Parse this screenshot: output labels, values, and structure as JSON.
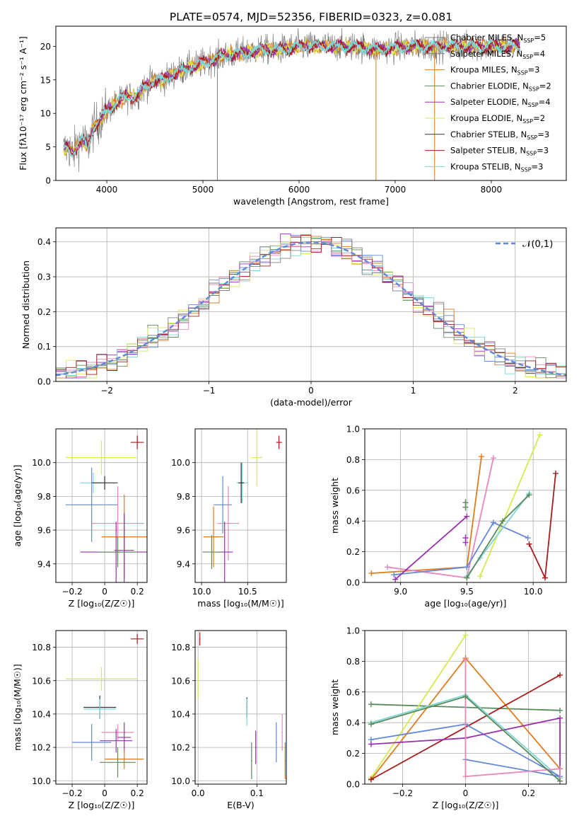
{
  "figure_title": "PLATE=0574, MJD=52356, FIBERID=0323, z=0.081",
  "colors": {
    "grey": "#808080",
    "red": "#a61c1c",
    "cyan": "#7fd6d6",
    "blue": "#6488d8",
    "orange": "#e07b1e",
    "green": "#5a8a5a",
    "purple": "#9a2fae",
    "yellow": "#d6ea50",
    "pink": "#e887b8",
    "dashed": "#6488d8"
  },
  "chart_data": [
    {
      "id": "spectrum",
      "type": "line",
      "xlabel": "wavelength [Angstrom, rest frame]",
      "ylabel": "Flux [fλ10⁻¹⁷ erg cm⁻² s⁻¹ A⁻¹]",
      "xlim": [
        3470,
        8780
      ],
      "ylim": [
        0,
        23
      ],
      "xticks": [
        4000,
        5000,
        6000,
        7000,
        8000
      ],
      "yticks": [
        0,
        5,
        10,
        15,
        20
      ],
      "grid": false,
      "legend_position": "top-right",
      "legend": [
        {
          "label": "Chabrier MILES, N_SSP=5",
          "color": "#808080"
        },
        {
          "label": "Salpeter MILES, N_SSP=4",
          "color": "#808080"
        },
        {
          "label": "Kroupa MILES, N_SSP=3",
          "color": "#e07b1e"
        },
        {
          "label": "Chabrier ELODIE, N_SSP=2",
          "color": "#5a8a5a"
        },
        {
          "label": "Salpeter ELODIE, N_SSP=4",
          "color": "#9a2fae"
        },
        {
          "label": "Kroupa ELODIE, N_SSP=2",
          "color": "#d6ea50"
        },
        {
          "label": "Chabrier STELIB, N_SSP=3",
          "color": "#333333"
        },
        {
          "label": "Salpeter STELIB, N_SSP=3",
          "color": "#a61c1c"
        },
        {
          "label": "Kroupa STELIB, N_SSP=3",
          "color": "#7fd6d6"
        }
      ],
      "continuum": {
        "x": [
          3550,
          3600,
          3650,
          3700,
          3750,
          3800,
          3850,
          3900,
          3950,
          4000,
          4100,
          4200,
          4300,
          4400,
          4500,
          4600,
          4700,
          4800,
          4900,
          5000,
          5200,
          5400,
          5600,
          5800,
          6000,
          6200,
          6400,
          6600,
          6800,
          7000,
          7200,
          7400,
          7600,
          7800,
          8000,
          8200,
          8300
        ],
        "y": [
          4.5,
          5.0,
          4.0,
          5.5,
          6.0,
          5.0,
          7.5,
          8.5,
          9.5,
          10.5,
          11.5,
          12.5,
          12.5,
          14.0,
          15.0,
          15.0,
          16.0,
          16.5,
          17.0,
          17.5,
          18.5,
          19.0,
          19.5,
          19.5,
          20.0,
          20.0,
          20.0,
          20.0,
          19.5,
          19.8,
          20.0,
          20.0,
          20.0,
          20.0,
          20.0,
          20.0,
          20.0
        ]
      },
      "dips": [
        {
          "x": 5150,
          "to": 0
        },
        {
          "x": 6800,
          "to": 0
        },
        {
          "x": 7410,
          "to": 0
        }
      ],
      "dip_colors": [
        "#808080",
        "#e07b1e",
        "#e07b1e"
      ]
    },
    {
      "id": "residuals",
      "type": "bar",
      "xlabel": "(data-model)/error",
      "ylabel": "Normed distribution",
      "xlim": [
        -2.5,
        2.5
      ],
      "ylim": [
        0,
        0.44
      ],
      "xticks": [
        -2,
        -1,
        0,
        1,
        2
      ],
      "yticks": [
        0.0,
        0.1,
        0.2,
        0.3,
        0.4
      ],
      "grid": true,
      "bin_width": 0.1,
      "x_start": -2.5,
      "gaussian_label": "𝒩(0,1)",
      "legend_position": "top-right",
      "n_histograms": 9,
      "series_colors": [
        "#6488d8",
        "#e07b1e",
        "#5a8a5a",
        "#9a2fae",
        "#d6ea50",
        "#e887b8",
        "#7fd6d6",
        "#a61c1c",
        "#808080"
      ]
    },
    {
      "id": "age_vs_Z",
      "type": "scatter",
      "xlabel": "Z [log₁₀(Z/Z☉)]",
      "ylabel": "age  [log₁₀(age/yr)]",
      "xlim": [
        -0.3,
        0.26
      ],
      "ylim": [
        9.29,
        10.2
      ],
      "xticks": [
        -0.2,
        0.0,
        0.2
      ],
      "yticks": [
        9.4,
        9.6,
        9.8,
        10.0
      ],
      "ytick_labels": [
        "9.4",
        "9.6",
        "9.8",
        "10.0"
      ],
      "grid": true,
      "points": [
        {
          "x": 0.2,
          "y": 10.12,
          "xe": 0.04,
          "ye": 0.04,
          "c": "#a61c1c"
        },
        {
          "x": -0.02,
          "y": 10.03,
          "xe": 0.22,
          "ye": 0.1,
          "c": "#d6ea50"
        },
        {
          "x": -0.07,
          "y": 9.88,
          "xe": 0.08,
          "ye": 0.06,
          "c": "#7fd6d6"
        },
        {
          "x": 0.0,
          "y": 9.88,
          "xe": 0.08,
          "ye": 0.04,
          "c": "#333333"
        },
        {
          "x": -0.08,
          "y": 9.75,
          "xe": 0.16,
          "ye": 0.22,
          "c": "#6488d8"
        },
        {
          "x": 0.08,
          "y": 9.64,
          "xe": 0.16,
          "ye": 0.22,
          "c": "#e887b8"
        },
        {
          "x": 0.12,
          "y": 9.56,
          "xe": 0.14,
          "ye": 0.25,
          "c": "#e07b1e"
        },
        {
          "x": 0.07,
          "y": 9.47,
          "xe": 0.22,
          "ye": 0.18,
          "c": "#9a2fae"
        },
        {
          "x": 0.12,
          "y": 9.48,
          "xe": 0.06,
          "ye": 0.22,
          "c": "#9a2fae"
        },
        {
          "x": 0.08,
          "y": 9.47,
          "xe": 0.12,
          "ye": 0.09,
          "c": "#5a8a5a"
        }
      ]
    },
    {
      "id": "age_vs_mass",
      "type": "scatter",
      "xlabel": "mass [log₁₀(M/M☉)]",
      "ylabel": "",
      "xlim": [
        9.93,
        10.92
      ],
      "ylim": [
        9.29,
        10.2
      ],
      "xticks": [
        10.0,
        10.5
      ],
      "xtick_labels": [
        "10.0",
        "10.5"
      ],
      "yticks": [
        9.4,
        9.6,
        9.8,
        10.0
      ],
      "ytick_labels": [
        "9.4",
        "9.6",
        "9.8",
        "10.0"
      ],
      "grid": true,
      "points": [
        {
          "x": 10.84,
          "y": 10.12,
          "xe": 0.03,
          "ye": 0.04,
          "c": "#a61c1c"
        },
        {
          "x": 10.6,
          "y": 10.03,
          "xe": 0.06,
          "ye": 0.17,
          "c": "#d6ea50"
        },
        {
          "x": 10.44,
          "y": 9.88,
          "xe": 0.06,
          "ye": 0.12,
          "c": "#7fd6d6"
        },
        {
          "x": 10.43,
          "y": 9.88,
          "xe": 0.03,
          "ye": 0.12,
          "c": "#333333"
        },
        {
          "x": 10.23,
          "y": 9.75,
          "xe": 0.1,
          "ye": 0.17,
          "c": "#6488d8"
        },
        {
          "x": 10.29,
          "y": 9.64,
          "xe": 0.12,
          "ye": 0.22,
          "c": "#e887b8"
        },
        {
          "x": 10.13,
          "y": 9.56,
          "xe": 0.11,
          "ye": 0.18,
          "c": "#e07b1e"
        },
        {
          "x": 10.25,
          "y": 9.47,
          "xe": 0.09,
          "ye": 0.18,
          "c": "#9a2fae"
        },
        {
          "x": 10.11,
          "y": 9.47,
          "xe": 0.1,
          "ye": 0.1,
          "c": "#5a8a5a"
        }
      ]
    },
    {
      "id": "massweight_vs_age",
      "type": "line",
      "xlabel": "age  [log₁₀(age/yr)]",
      "ylabel": "mass weight",
      "xlim": [
        8.73,
        10.25
      ],
      "ylim": [
        0,
        1
      ],
      "xticks": [
        9.0,
        9.5,
        10.0
      ],
      "xtick_labels": [
        "9.0",
        "9.5",
        "10.0"
      ],
      "yticks": [
        0.0,
        0.2,
        0.4,
        0.6,
        0.8,
        1.0
      ],
      "ytick_labels": [
        "0.0",
        "0.2",
        "0.4",
        "0.6",
        "0.8",
        "1.0"
      ],
      "grid": true,
      "series": [
        {
          "c": "#e07b1e",
          "x": [
            8.78,
            9.5,
            9.61
          ],
          "y": [
            0.06,
            0.1,
            0.82
          ]
        },
        {
          "c": "#d6ea50",
          "x": [
            9.6,
            10.05
          ],
          "y": [
            0.04,
            0.96
          ]
        },
        {
          "c": "#e887b8",
          "x": [
            8.9,
            9.5,
            9.7
          ],
          "y": [
            0.1,
            0.03,
            0.81
          ]
        },
        {
          "c": "#6488d8",
          "x": [
            8.95,
            9.5,
            9.7,
            9.96
          ],
          "y": [
            0.05,
            0.1,
            0.39,
            0.29
          ]
        },
        {
          "c": "#7fd6d6",
          "x": [
            9.5,
            9.6,
            9.97
          ],
          "y": [
            0.04,
            0.16,
            0.58
          ]
        },
        {
          "c": "#5a8a5a",
          "x": [
            9.5,
            9.77,
            9.97
          ],
          "y": [
            0.03,
            0.4,
            0.57
          ]
        },
        {
          "c": "#9a2fae",
          "x": [
            8.96,
            9.5
          ],
          "y": [
            0.02,
            0.43
          ]
        },
        {
          "c": "#a61c1c",
          "x": [
            9.97,
            10.09,
            10.17
          ],
          "y": [
            0.25,
            0.03,
            0.71
          ]
        }
      ],
      "extra_marks": [
        {
          "c": "#5a8a5a",
          "x": 9.49,
          "y": 0.52
        },
        {
          "c": "#5a8a5a",
          "x": 9.49,
          "y": 0.49
        },
        {
          "c": "#9a2fae",
          "x": 9.49,
          "y": 0.29
        },
        {
          "c": "#9a2fae",
          "x": 9.49,
          "y": 0.26
        }
      ]
    },
    {
      "id": "mass_vs_Z",
      "type": "scatter",
      "xlabel": "Z [log₁₀(Z/Z☉)]",
      "ylabel": "mass [log₁₀(M/M☉)]",
      "xlim": [
        -0.3,
        0.26
      ],
      "ylim": [
        9.98,
        10.9
      ],
      "xticks": [
        -0.2,
        0.0,
        0.2
      ],
      "yticks": [
        10.0,
        10.2,
        10.4,
        10.6,
        10.8
      ],
      "ytick_labels": [
        "10.0",
        "10.2",
        "10.4",
        "10.6",
        "10.8"
      ],
      "grid": true,
      "points": [
        {
          "x": 0.2,
          "y": 10.85,
          "xe": 0.04,
          "ye": 0.03,
          "c": "#a61c1c"
        },
        {
          "x": -0.02,
          "y": 10.61,
          "xe": 0.22,
          "ye": 0.07,
          "c": "#d6ea50"
        },
        {
          "x": -0.03,
          "y": 10.44,
          "xe": 0.1,
          "ye": 0.07,
          "c": "#333333"
        },
        {
          "x": -0.03,
          "y": 10.43,
          "xe": 0.1,
          "ye": 0.06,
          "c": "#7fd6d6"
        },
        {
          "x": 0.08,
          "y": 10.29,
          "xe": 0.1,
          "ye": 0.05,
          "c": "#e887b8"
        },
        {
          "x": 0.07,
          "y": 10.24,
          "xe": 0.1,
          "ye": 0.07,
          "c": "#9a2fae"
        },
        {
          "x": 0.12,
          "y": 10.26,
          "xe": 0.04,
          "ye": 0.09,
          "c": "#9a2fae"
        },
        {
          "x": -0.08,
          "y": 10.23,
          "xe": 0.12,
          "ye": 0.11,
          "c": "#6488d8"
        },
        {
          "x": 0.12,
          "y": 10.13,
          "xe": 0.12,
          "ye": 0.06,
          "c": "#e07b1e"
        },
        {
          "x": 0.08,
          "y": 10.11,
          "xe": 0.11,
          "ye": 0.09,
          "c": "#5a8a5a"
        }
      ]
    },
    {
      "id": "mass_vs_ebv",
      "type": "scatter",
      "xlabel": "E(B-V)",
      "ylabel": "",
      "xlim": [
        -0.005,
        0.15
      ],
      "ylim": [
        9.98,
        10.9
      ],
      "xticks": [
        0.0,
        0.1
      ],
      "xtick_labels": [
        "0.0",
        "0.1"
      ],
      "yticks": [
        10.0,
        10.2,
        10.4,
        10.6,
        10.8
      ],
      "ytick_labels": [
        "10.0",
        "10.2",
        "10.4",
        "10.6",
        "10.8"
      ],
      "grid": true,
      "points": [
        {
          "x": 0.003,
          "y": 10.85,
          "xe": 0.001,
          "ye": 0.04,
          "c": "#a61c1c"
        },
        {
          "x": 0.0,
          "y": 10.61,
          "xe": 0.001,
          "ye": 0.12,
          "c": "#d6ea50"
        },
        {
          "x": 0.083,
          "y": 10.44,
          "xe": 0.001,
          "ye": 0.06,
          "c": "#333333"
        },
        {
          "x": 0.083,
          "y": 10.41,
          "xe": 0.001,
          "ye": 0.08,
          "c": "#7fd6d6"
        },
        {
          "x": 0.143,
          "y": 10.29,
          "xe": 0.001,
          "ye": 0.11,
          "c": "#e887b8"
        },
        {
          "x": 0.133,
          "y": 10.23,
          "xe": 0.001,
          "ye": 0.12,
          "c": "#6488d8"
        },
        {
          "x": 0.148,
          "y": 10.12,
          "xe": 0.001,
          "ye": 0.11,
          "c": "#e07b1e"
        },
        {
          "x": 0.091,
          "y": 10.12,
          "xe": 0.001,
          "ye": 0.11,
          "c": "#5a8a5a"
        },
        {
          "x": 0.098,
          "y": 10.2,
          "xe": 0.001,
          "ye": 0.1,
          "c": "#9a2fae"
        }
      ]
    },
    {
      "id": "massweight_vs_Z",
      "type": "line",
      "xlabel": "Z [log₁₀(Z/Z☉)]",
      "ylabel": "mass weight",
      "xlim": [
        -0.32,
        0.32
      ],
      "ylim": [
        0,
        1
      ],
      "xticks": [
        -0.2,
        0.0,
        0.2
      ],
      "yticks": [
        0.0,
        0.2,
        0.4,
        0.6,
        0.8,
        1.0
      ],
      "ytick_labels": [
        "0.0",
        "0.2",
        "0.4",
        "0.6",
        "0.8",
        "1.0"
      ],
      "grid": true,
      "series": [
        {
          "c": "#5a8a5a",
          "x": [
            -0.3,
            0.3
          ],
          "y": [
            0.52,
            0.48
          ]
        },
        {
          "c": "#d6ea50",
          "x": [
            -0.3,
            0.0
          ],
          "y": [
            0.04,
            0.97
          ]
        },
        {
          "c": "#e07b1e",
          "x": [
            -0.3,
            0.0,
            0.3
          ],
          "y": [
            0.03,
            0.82,
            0.1
          ]
        },
        {
          "c": "#a61c1c",
          "x": [
            -0.3,
            0.3
          ],
          "y": [
            0.03,
            0.71
          ]
        },
        {
          "c": "#7fd6d6",
          "x": [
            -0.3,
            0.0,
            0.3
          ],
          "y": [
            0.4,
            0.58,
            0.04
          ]
        },
        {
          "c": "#6488d8",
          "x": [
            -0.3,
            0.0,
            0.3,
            0.0,
            0.3
          ],
          "y": [
            0.29,
            0.39,
            0.05,
            0.16,
            0.05
          ]
        },
        {
          "c": "#9a2fae",
          "x": [
            -0.3,
            0.0,
            0.3,
            0.3
          ],
          "y": [
            0.26,
            0.3,
            0.43,
            0.02
          ]
        },
        {
          "c": "#e887b8",
          "x": [
            0.0,
            0.0,
            0.3,
            0.3
          ],
          "y": [
            0.81,
            0.05,
            0.1,
            0.02
          ]
        },
        {
          "c": "#5a8a5a",
          "x": [
            -0.3,
            0.0,
            0.3
          ],
          "y": [
            0.39,
            0.57,
            0.02
          ]
        }
      ]
    }
  ]
}
